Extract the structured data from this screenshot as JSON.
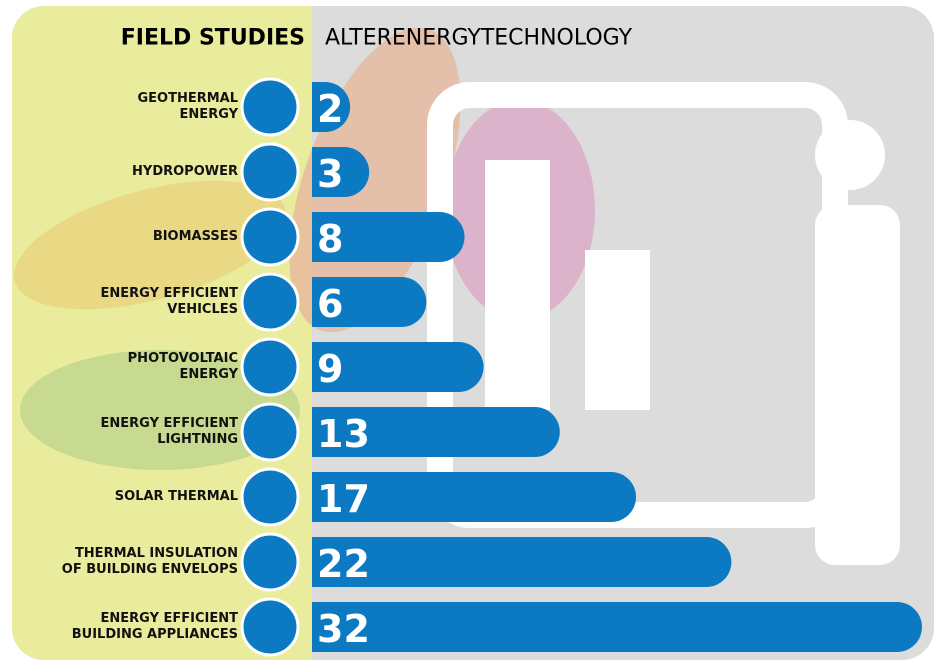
{
  "chart_data": {
    "type": "bar",
    "orientation": "horizontal",
    "title": "FIELD STUDIES",
    "subtitle": "ALTERENERGYTECHNOLOGY",
    "categories": [
      "GEOTHERMAL\nENERGY",
      "HYDROPOWER",
      "BIOMASSES",
      "ENERGY EFFICIENT\nVEHICLES",
      "PHOTOVOLTAIC\nENERGY",
      "ENERGY EFFICIENT\nLIGHTNING",
      "SOLAR THERMAL",
      "THERMAL INSULATION\nOF BUILDING ENVELOPS",
      "ENERGY EFFICIENT\nBUILDING APPLIANCES"
    ],
    "values": [
      2,
      3,
      8,
      6,
      9,
      13,
      17,
      22,
      32
    ],
    "color": "#0b7ac2"
  }
}
